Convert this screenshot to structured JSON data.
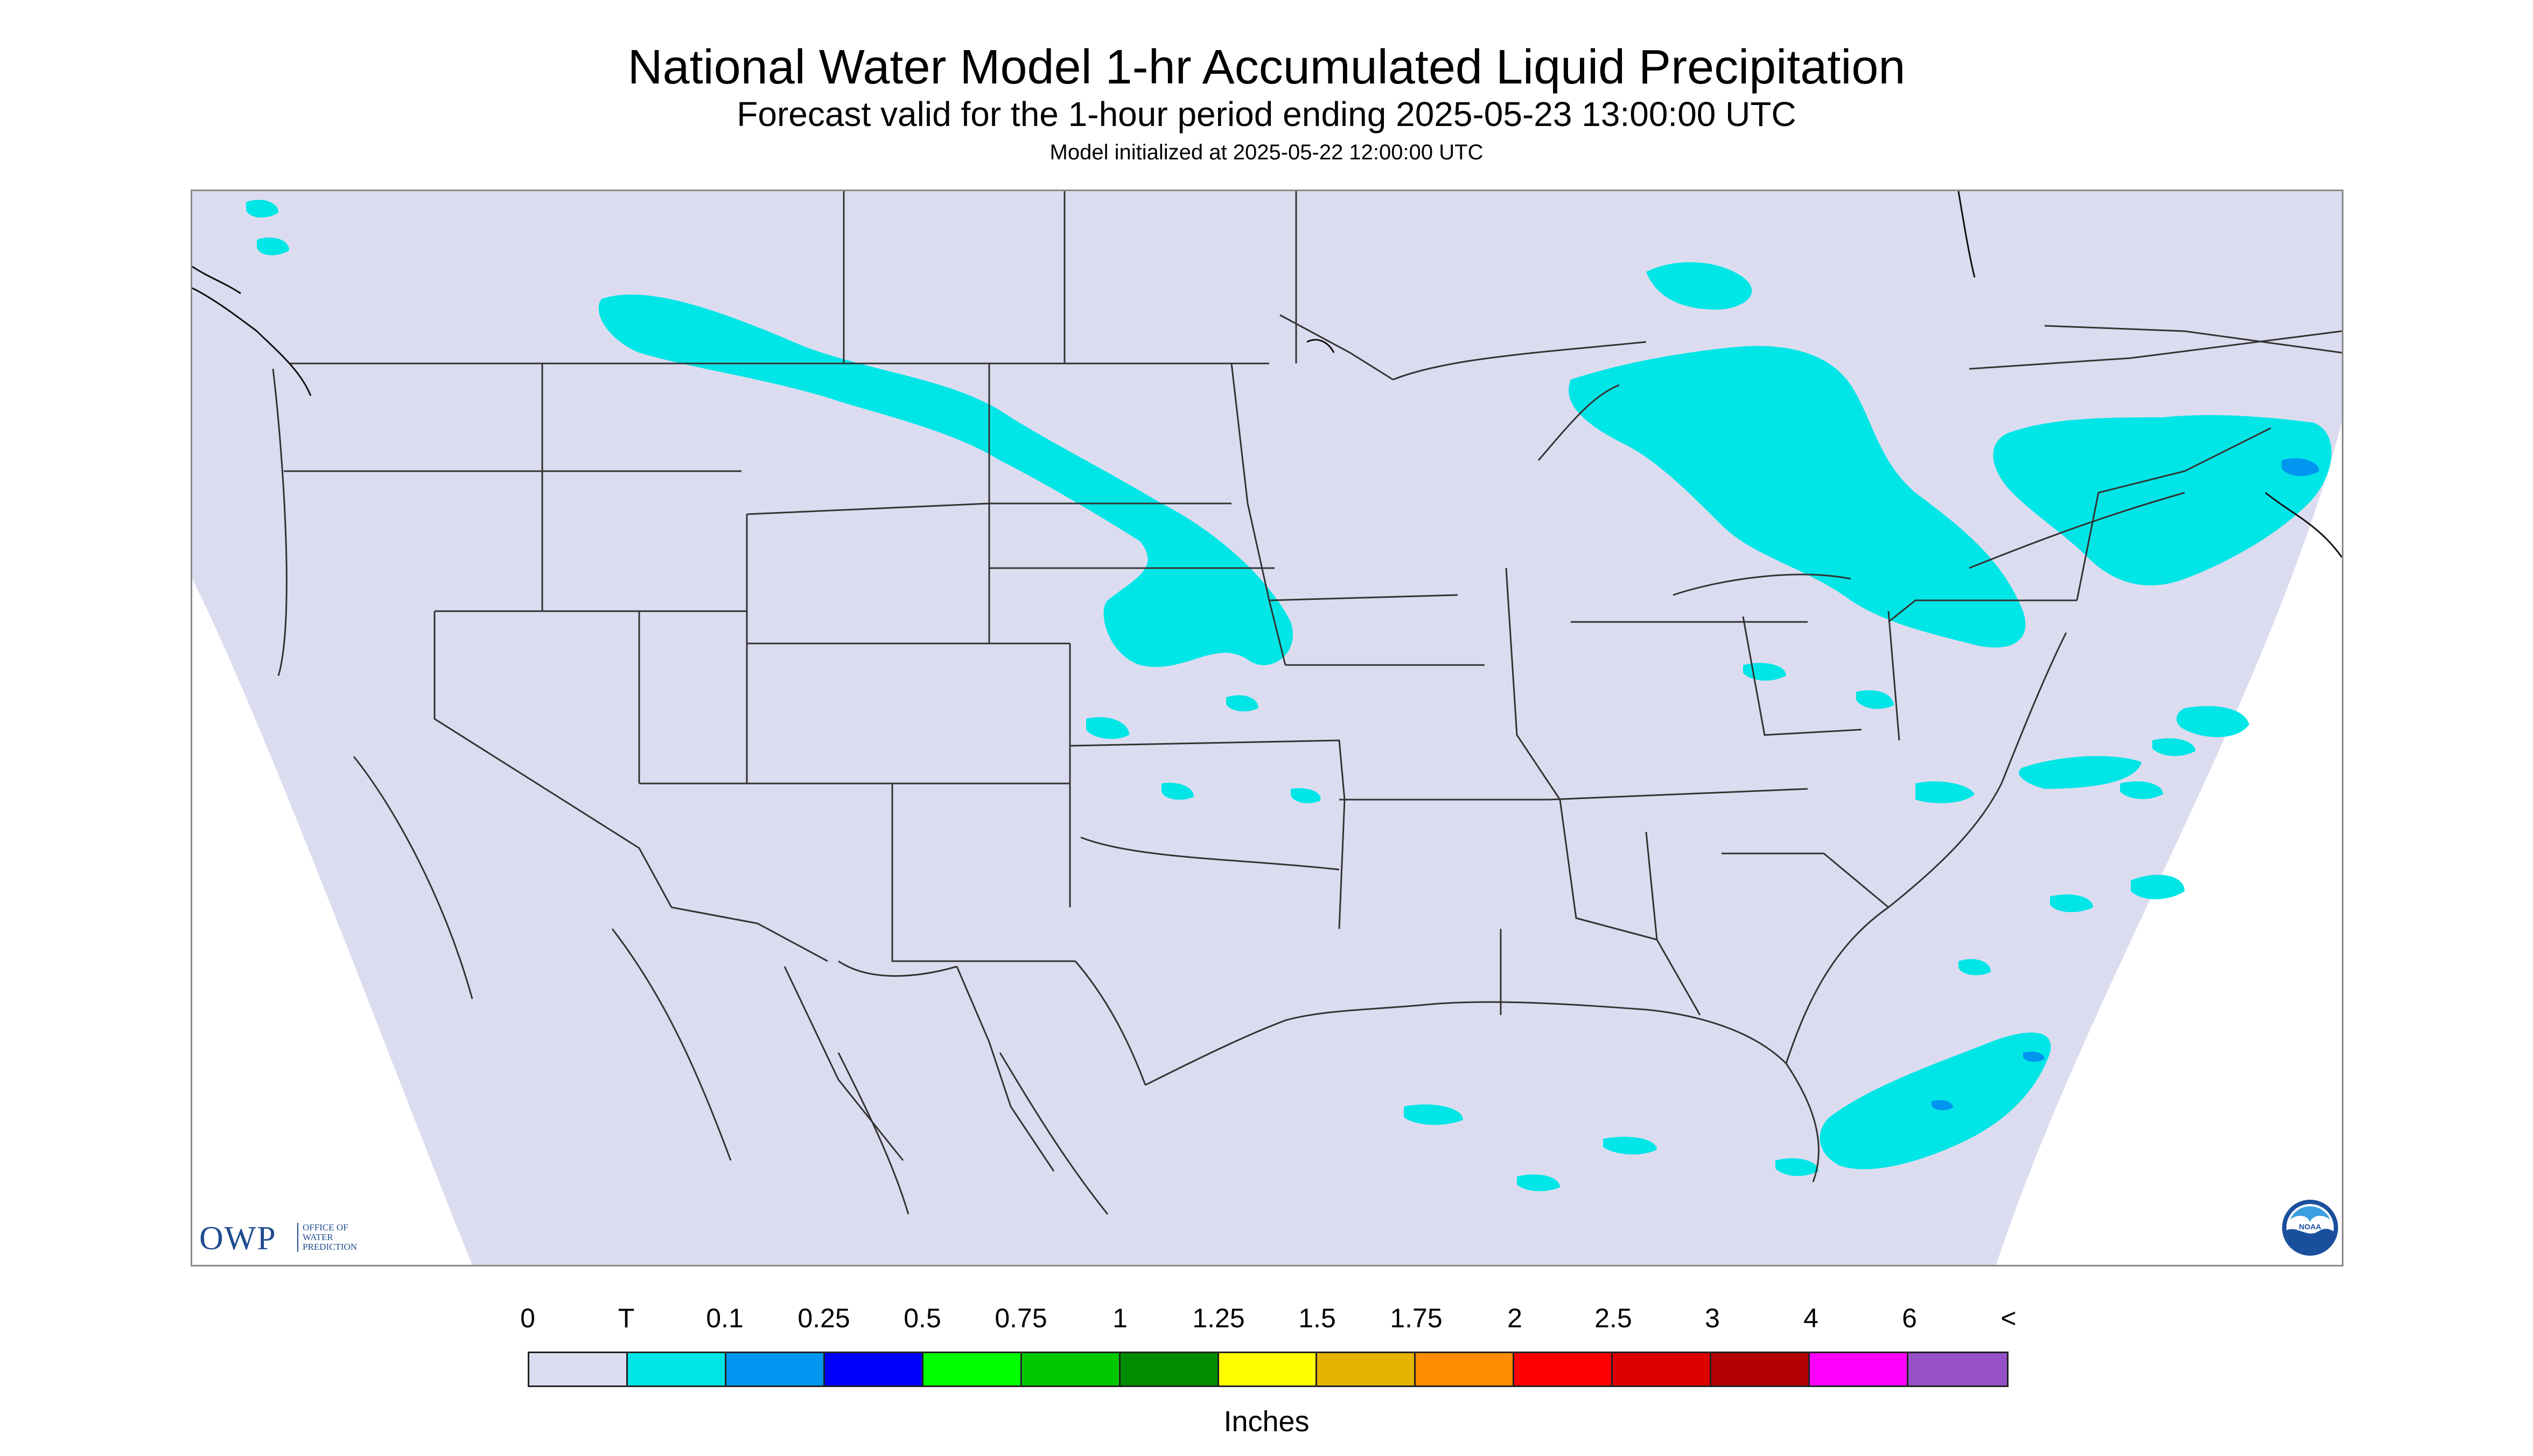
{
  "header": {
    "title": "National Water Model 1-hr Accumulated Liquid Precipitation",
    "subtitle": "Forecast valid for the 1-hour period ending 2025-05-23 13:00:00 UTC",
    "init": "Model initialized at 2025-05-22 12:00:00 UTC"
  },
  "legend": {
    "labels": [
      "0",
      "T",
      "0.1",
      "0.25",
      "0.5",
      "0.75",
      "1",
      "1.25",
      "1.5",
      "1.75",
      "2",
      "2.5",
      "3",
      "4",
      "6",
      "<"
    ],
    "colors": [
      "#dcdcf0",
      "#00e6e6",
      "#0096f0",
      "#0000ff",
      "#00ff00",
      "#00c800",
      "#008c00",
      "#ffff00",
      "#e6b400",
      "#ff8c00",
      "#ff0000",
      "#dc0000",
      "#b40000",
      "#ff00ff",
      "#9650c8"
    ],
    "units": "Inches"
  },
  "logos": {
    "owp_main": "OWP",
    "owp_lines": [
      "OFFICE OF",
      "WATER",
      "PREDICTION"
    ],
    "noaa": "NOAA"
  },
  "map": {
    "no_data_color": "#ffffff",
    "domain_color": "#dcdcf0",
    "precip_color": "#00e6e6",
    "heavier_color": "#0096f0",
    "boundary_color": "#333333"
  }
}
